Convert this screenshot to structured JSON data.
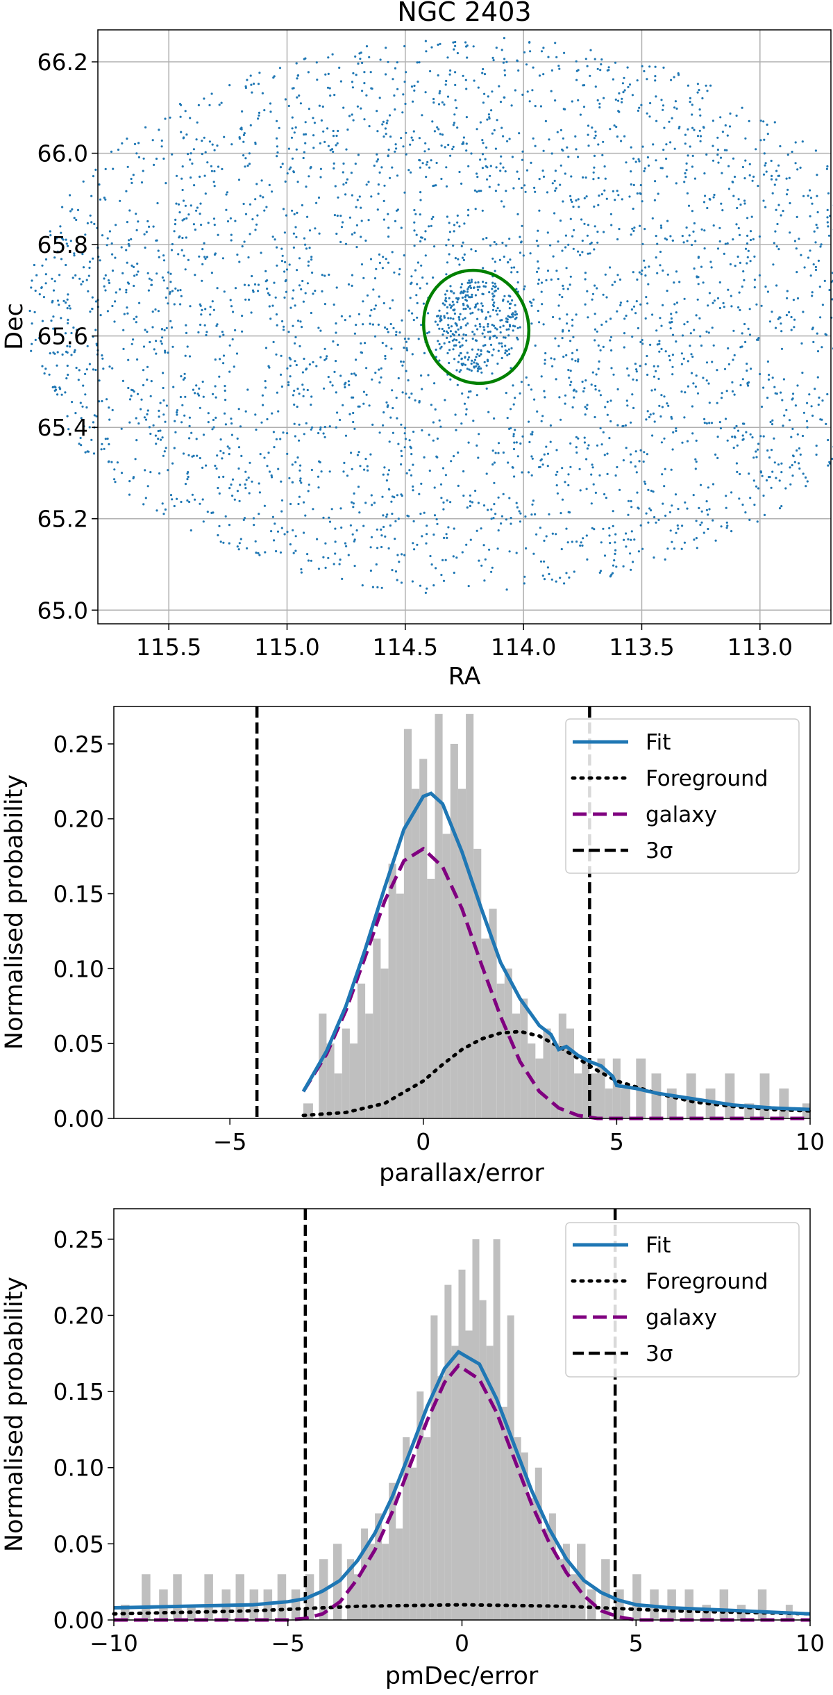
{
  "chart_data": [
    {
      "type": "scatter",
      "title": "NGC 2403",
      "xlabel": "RA",
      "ylabel": "Dec",
      "xlim": [
        115.8,
        112.7
      ],
      "ylim": [
        64.97,
        66.27
      ],
      "x_inverted": true,
      "grid": true,
      "x_ticks": [
        "115.5",
        "115.0",
        "114.5",
        "114.0",
        "113.5",
        "113.0"
      ],
      "y_ticks": [
        "65.0",
        "65.2",
        "65.4",
        "65.6",
        "65.8",
        "66.0",
        "66.2"
      ],
      "point_color": "#1f77b4",
      "field": {
        "center_ra": 114.25,
        "center_dec": 65.645,
        "radius_ra": 1.85,
        "radius_dec": 0.61,
        "approx_points": 3400
      },
      "ellipse": {
        "center_ra": 114.2,
        "center_dec": 65.62,
        "semi_ra": 0.22,
        "semi_dec": 0.125,
        "angle_deg": -20,
        "color": "#008000"
      }
    },
    {
      "type": "bar",
      "xlabel": "parallax/error",
      "ylabel": "Normalised probability",
      "xlim": [
        -8,
        10
      ],
      "ylim": [
        0,
        0.275
      ],
      "x_ticks": [
        "−5",
        "0",
        "5",
        "10"
      ],
      "y_ticks": [
        "0.00",
        "0.05",
        "0.10",
        "0.15",
        "0.20",
        "0.25"
      ],
      "hist_color": "#bfbfbf",
      "hist_bins": [
        [
          -3.1,
          0.01
        ],
        [
          -2.7,
          0.07
        ],
        [
          -2.5,
          0.05
        ],
        [
          -2.3,
          0.03
        ],
        [
          -2.1,
          0.06
        ],
        [
          -1.9,
          0.05
        ],
        [
          -1.7,
          0.09
        ],
        [
          -1.5,
          0.07
        ],
        [
          -1.3,
          0.12
        ],
        [
          -1.1,
          0.1
        ],
        [
          -0.9,
          0.17
        ],
        [
          -0.7,
          0.15
        ],
        [
          -0.5,
          0.26
        ],
        [
          -0.3,
          0.22
        ],
        [
          -0.1,
          0.24
        ],
        [
          0.1,
          0.16
        ],
        [
          0.3,
          0.27
        ],
        [
          0.5,
          0.19
        ],
        [
          0.7,
          0.25
        ],
        [
          0.9,
          0.22
        ],
        [
          1.1,
          0.27
        ],
        [
          1.3,
          0.18
        ],
        [
          1.5,
          0.12
        ],
        [
          1.7,
          0.14
        ],
        [
          1.9,
          0.09
        ],
        [
          2.1,
          0.1
        ],
        [
          2.3,
          0.07
        ],
        [
          2.5,
          0.08
        ],
        [
          2.7,
          0.05
        ],
        [
          2.9,
          0.04
        ],
        [
          3.1,
          0.06
        ],
        [
          3.3,
          0.05
        ],
        [
          3.5,
          0.07
        ],
        [
          3.7,
          0.06
        ],
        [
          3.9,
          0.03
        ],
        [
          4.1,
          0.04
        ],
        [
          4.3,
          0.03
        ],
        [
          4.5,
          0.04
        ],
        [
          4.7,
          0.02
        ],
        [
          4.9,
          0.04
        ],
        [
          5.1,
          0.02
        ],
        [
          5.5,
          0.04
        ],
        [
          5.9,
          0.03
        ],
        [
          6.3,
          0.02
        ],
        [
          6.8,
          0.03
        ],
        [
          7.3,
          0.02
        ],
        [
          7.8,
          0.03
        ],
        [
          8.3,
          0.01
        ],
        [
          8.7,
          0.03
        ],
        [
          9.2,
          0.02
        ],
        [
          9.8,
          0.01
        ]
      ],
      "series": [
        {
          "name": "Fit",
          "color": "#1f77b4",
          "style": "solid",
          "x": [
            -3.1,
            -2.5,
            -2,
            -1.5,
            -1,
            -0.5,
            0,
            0.2,
            0.5,
            1,
            1.5,
            2,
            2.5,
            3,
            3.3,
            3.5,
            3.7,
            4,
            4.3,
            4.6,
            4.9,
            5,
            5.5,
            6,
            7,
            8,
            9,
            10
          ],
          "values": [
            0.018,
            0.045,
            0.075,
            0.113,
            0.154,
            0.193,
            0.215,
            0.217,
            0.21,
            0.178,
            0.14,
            0.104,
            0.08,
            0.062,
            0.056,
            0.046,
            0.048,
            0.042,
            0.038,
            0.035,
            0.028,
            0.022,
            0.02,
            0.017,
            0.013,
            0.009,
            0.007,
            0.006
          ]
        },
        {
          "name": "Foreground",
          "color": "#000000",
          "style": "dotted",
          "x": [
            -3.1,
            -2,
            -1,
            0,
            0.5,
            1,
            1.5,
            2,
            2.5,
            3,
            3.5,
            4,
            4.5,
            5,
            6,
            7,
            8,
            9,
            10
          ],
          "values": [
            0.002,
            0.004,
            0.01,
            0.025,
            0.036,
            0.046,
            0.053,
            0.057,
            0.058,
            0.055,
            0.048,
            0.04,
            0.032,
            0.025,
            0.017,
            0.011,
            0.008,
            0.006,
            0.005
          ]
        },
        {
          "name": "galaxy",
          "color": "#800080",
          "style": "dashed",
          "x": [
            -3.1,
            -2.5,
            -2,
            -1.5,
            -1,
            -0.5,
            0,
            0.5,
            1,
            1.5,
            2,
            2.5,
            3,
            3.5,
            4,
            4.5,
            5,
            10
          ],
          "values": [
            0.018,
            0.043,
            0.072,
            0.108,
            0.145,
            0.172,
            0.18,
            0.168,
            0.14,
            0.103,
            0.068,
            0.038,
            0.018,
            0.007,
            0.002,
            0,
            0,
            0
          ]
        }
      ],
      "threshold_lines": [
        -4.3,
        4.3
      ],
      "legend": {
        "position": "top-right",
        "entries": [
          "Fit",
          "Foreground",
          "galaxy",
          "3σ"
        ]
      }
    },
    {
      "type": "bar",
      "xlabel": "pmDec/error",
      "ylabel": "Normalised probability",
      "xlim": [
        -10,
        10
      ],
      "ylim": [
        0,
        0.27
      ],
      "x_ticks": [
        "−10",
        "−5",
        "0",
        "5",
        "10"
      ],
      "y_ticks": [
        "0.00",
        "0.05",
        "0.10",
        "0.15",
        "0.20",
        "0.25"
      ],
      "hist_color": "#bfbfbf",
      "hist_bins": [
        [
          -9.8,
          0.01
        ],
        [
          -9.2,
          0.03
        ],
        [
          -8.7,
          0.02
        ],
        [
          -8.3,
          0.03
        ],
        [
          -7.9,
          0.01
        ],
        [
          -7.4,
          0.03
        ],
        [
          -6.9,
          0.02
        ],
        [
          -6.5,
          0.03
        ],
        [
          -6.1,
          0.02
        ],
        [
          -5.7,
          0.02
        ],
        [
          -5.3,
          0.03
        ],
        [
          -4.9,
          0.02
        ],
        [
          -4.5,
          0.03
        ],
        [
          -4.1,
          0.04
        ],
        [
          -3.7,
          0.05
        ],
        [
          -3.3,
          0.04
        ],
        [
          -3.1,
          0.03
        ],
        [
          -2.9,
          0.06
        ],
        [
          -2.7,
          0.05
        ],
        [
          -2.5,
          0.07
        ],
        [
          -2.3,
          0.05
        ],
        [
          -2.1,
          0.09
        ],
        [
          -1.9,
          0.06
        ],
        [
          -1.7,
          0.12
        ],
        [
          -1.5,
          0.1
        ],
        [
          -1.3,
          0.15
        ],
        [
          -1.1,
          0.12
        ],
        [
          -0.9,
          0.2
        ],
        [
          -0.7,
          0.16
        ],
        [
          -0.5,
          0.22
        ],
        [
          -0.3,
          0.18
        ],
        [
          -0.1,
          0.23
        ],
        [
          0.1,
          0.19
        ],
        [
          0.3,
          0.25
        ],
        [
          0.5,
          0.21
        ],
        [
          0.7,
          0.18
        ],
        [
          0.9,
          0.25
        ],
        [
          1.1,
          0.14
        ],
        [
          1.3,
          0.2
        ],
        [
          1.5,
          0.12
        ],
        [
          1.7,
          0.11
        ],
        [
          1.9,
          0.08
        ],
        [
          2.1,
          0.1
        ],
        [
          2.3,
          0.06
        ],
        [
          2.5,
          0.07
        ],
        [
          2.7,
          0.04
        ],
        [
          2.9,
          0.05
        ],
        [
          3.1,
          0.03
        ],
        [
          3.3,
          0.05
        ],
        [
          3.6,
          0.02
        ],
        [
          4.0,
          0.04
        ],
        [
          4.4,
          0.02
        ],
        [
          4.9,
          0.03
        ],
        [
          5.4,
          0.02
        ],
        [
          5.9,
          0.02
        ],
        [
          6.4,
          0.02
        ],
        [
          6.9,
          0.01
        ],
        [
          7.4,
          0.02
        ],
        [
          7.9,
          0.01
        ],
        [
          8.5,
          0.02
        ],
        [
          9.3,
          0.01
        ]
      ],
      "series": [
        {
          "name": "Fit",
          "color": "#1f77b4",
          "style": "solid",
          "x": [
            -10,
            -8,
            -6,
            -5,
            -4.5,
            -4,
            -3.5,
            -3,
            -2.5,
            -2,
            -1.5,
            -1,
            -0.5,
            -0.1,
            0.5,
            1,
            1.5,
            2,
            2.5,
            3,
            3.5,
            4,
            4.5,
            5,
            6,
            8,
            10
          ],
          "values": [
            0.008,
            0.009,
            0.01,
            0.012,
            0.014,
            0.019,
            0.026,
            0.039,
            0.057,
            0.081,
            0.11,
            0.14,
            0.165,
            0.176,
            0.168,
            0.145,
            0.115,
            0.085,
            0.06,
            0.04,
            0.026,
            0.018,
            0.013,
            0.01,
            0.008,
            0.006,
            0.004
          ]
        },
        {
          "name": "Foreground",
          "color": "#000000",
          "style": "dotted",
          "x": [
            -10,
            -6,
            -3,
            0,
            3,
            6,
            10
          ],
          "values": [
            0.004,
            0.006,
            0.009,
            0.01,
            0.009,
            0.006,
            0.004
          ]
        },
        {
          "name": "galaxy",
          "color": "#800080",
          "style": "dashed",
          "x": [
            -10,
            -5,
            -4.5,
            -4,
            -3.5,
            -3,
            -2.5,
            -2,
            -1.5,
            -1,
            -0.5,
            -0.1,
            0.5,
            1,
            1.5,
            2,
            2.5,
            3,
            3.5,
            4,
            4.5,
            5,
            10
          ],
          "values": [
            0,
            0,
            0.001,
            0.004,
            0.012,
            0.027,
            0.046,
            0.071,
            0.101,
            0.131,
            0.156,
            0.167,
            0.158,
            0.136,
            0.106,
            0.076,
            0.051,
            0.031,
            0.016,
            0.006,
            0.002,
            0,
            0
          ]
        }
      ],
      "threshold_lines": [
        -4.5,
        4.4
      ],
      "legend": {
        "position": "top-right",
        "entries": [
          "Fit",
          "Foreground",
          "galaxy",
          "3σ"
        ]
      }
    }
  ]
}
